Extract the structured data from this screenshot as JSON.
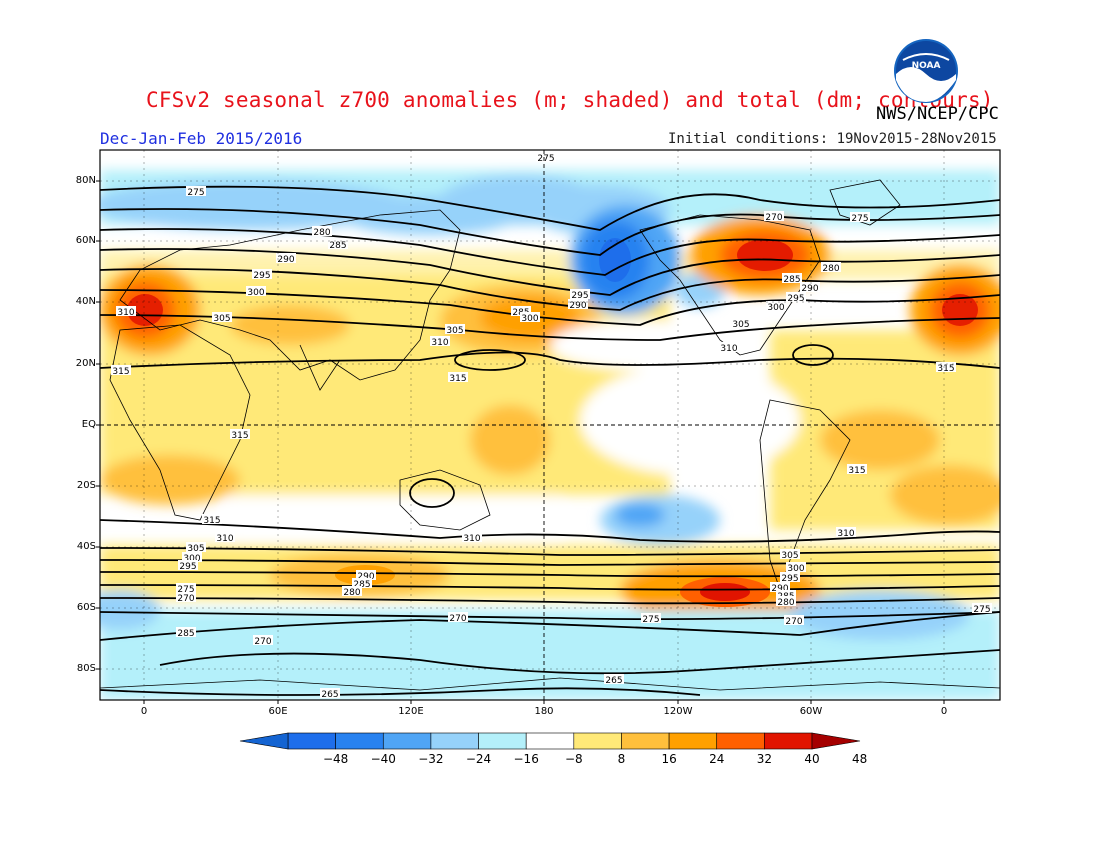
{
  "header": {
    "title": "CFSv2 seasonal z700 anomalies (m; shaded) and total (dm; contours)",
    "agency": "NWS/NCEP/CPC",
    "season": "Dec-Jan-Feb 2015/2016",
    "initial_conditions": "Initial conditions: 19Nov2015-28Nov2015",
    "logo_text": "NOAA"
  },
  "map": {
    "lat_labels": [
      "80N",
      "60N",
      "40N",
      "20N",
      "EQ",
      "20S",
      "40S",
      "60S",
      "80S"
    ],
    "lon_labels": [
      "0",
      "60E",
      "120E",
      "180",
      "120W",
      "60W",
      "0"
    ],
    "contour_labels": [
      "275",
      "270",
      "275",
      "280",
      "285",
      "290",
      "295",
      "300",
      "305",
      "310",
      "315",
      "275",
      "285",
      "290",
      "295",
      "300",
      "305",
      "310",
      "315",
      "280",
      "285",
      "290",
      "295",
      "300",
      "305",
      "310",
      "315",
      "315",
      "315",
      "315",
      "310",
      "310",
      "310",
      "305",
      "300",
      "295",
      "290",
      "285",
      "280",
      "275",
      "270",
      "265",
      "270",
      "285",
      "305",
      "300",
      "295",
      "290",
      "285",
      "280",
      "275",
      "270",
      "265",
      "270",
      "275"
    ],
    "colors": {
      "neg48": "#1464d2",
      "neg40": "#1e6eeb",
      "neg32": "#2882f0",
      "neg24": "#50a5f5",
      "neg16": "#96d2fa",
      "neg8": "#b4f0fa",
      "zero": "#ffffff",
      "pos8": "#ffe978",
      "pos16": "#ffc03c",
      "pos24": "#ffa000",
      "pos32": "#ff6000",
      "pos40": "#e11400",
      "pos48": "#a50000"
    }
  },
  "colorbar": {
    "labels": [
      "−48",
      "−40",
      "−32",
      "−24",
      "−16",
      "−8",
      "8",
      "16",
      "24",
      "32",
      "40",
      "48"
    ],
    "colors": [
      "#1464d2",
      "#1e6eeb",
      "#2882f0",
      "#50a5f5",
      "#96d2fa",
      "#b4f0fa",
      "#ffffff",
      "#ffe978",
      "#ffc03c",
      "#ffa000",
      "#ff6000",
      "#e11400",
      "#a50000"
    ]
  }
}
